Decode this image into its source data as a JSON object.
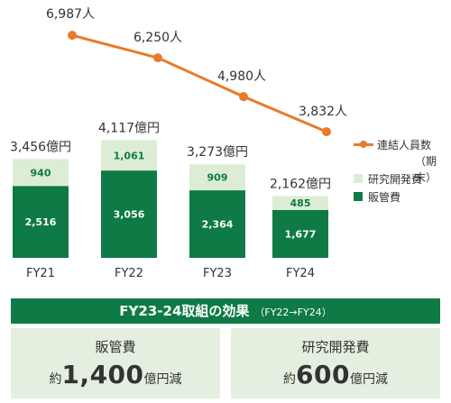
{
  "chart_data": {
    "type": "bar",
    "categories": [
      "FY21",
      "FY22",
      "FY23",
      "FY24"
    ],
    "series": [
      {
        "name": "販管費",
        "values": [
          2516,
          3056,
          2364,
          1677
        ],
        "labels": [
          "2,516",
          "3,056",
          "2,364",
          "1,677"
        ],
        "color": "#0E7A45"
      },
      {
        "name": "研究開発費",
        "values": [
          940,
          1061,
          909,
          485
        ],
        "labels": [
          "940",
          "1,061",
          "909",
          "485"
        ],
        "color": "#DDEDD5"
      }
    ],
    "totals": [
      3456,
      4117,
      3273,
      2162
    ],
    "total_labels": [
      "3,456億円",
      "4,117億円",
      "3,273億円",
      "2,162億円"
    ],
    "line": {
      "name": "連結人員数",
      "name_sub": "（期末）",
      "values": [
        6987,
        6250,
        4980,
        3832
      ],
      "labels": [
        "6,987人",
        "6,250人",
        "4,980人",
        "3,832人"
      ],
      "color": "#E87A2A"
    }
  },
  "legend": {
    "line_label": "連結人員数",
    "line_sub": "（期末）",
    "rd_label": "研究開発費",
    "sga_label": "販管費"
  },
  "banner": {
    "main": "FY23-24取組の効果",
    "sub": "（FY22→FY24）"
  },
  "effects": [
    {
      "label": "販管費",
      "prefix": "約",
      "number": "1,400",
      "suffix": "億円減"
    },
    {
      "label": "研究開発費",
      "prefix": "約",
      "number": "600",
      "suffix": "億円減"
    }
  ]
}
